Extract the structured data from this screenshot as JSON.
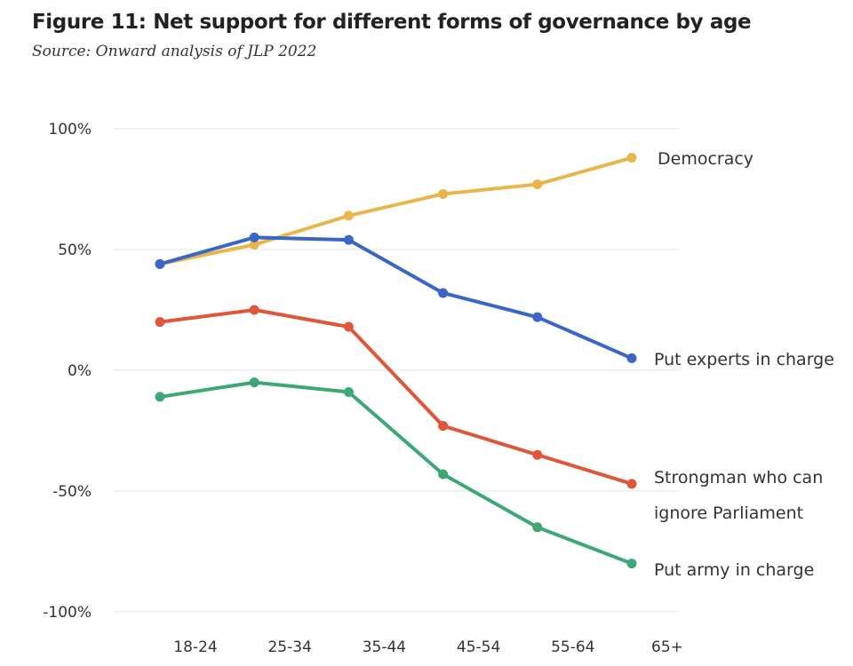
{
  "header": {
    "title": "Figure 11: Net support for different forms of governance by age",
    "subtitle": "Source: Onward analysis of JLP 2022"
  },
  "chart_data": {
    "type": "line",
    "categories": [
      "18-24",
      "25-34",
      "35-44",
      "45-54",
      "55-64",
      "65+"
    ],
    "ylim": [
      -100,
      100
    ],
    "yticks": [
      100,
      50,
      0,
      -50,
      -100
    ],
    "ytick_labels": [
      "100%",
      "50%",
      "0%",
      "-50%",
      "-100%"
    ],
    "grid": true,
    "legend": "direct labels at line ends",
    "series": [
      {
        "name": "Democracy",
        "label_lines": [
          "Democracy"
        ],
        "color": "#E9B64E",
        "values": [
          44,
          52,
          64,
          73,
          77,
          88
        ]
      },
      {
        "name": "Put experts in charge",
        "label_lines": [
          "Put experts in charge"
        ],
        "color": "#3A66C5",
        "values": [
          44,
          55,
          54,
          32,
          22,
          5
        ]
      },
      {
        "name": "Strongman who can ignore Parliament",
        "label_lines": [
          "Strongman who can",
          "ignore Parliament"
        ],
        "color": "#E0563A",
        "values": [
          20,
          25,
          18,
          -23,
          -35,
          -47
        ]
      },
      {
        "name": "Put army in charge",
        "label_lines": [
          "Put army in charge"
        ],
        "color": "#3DA775",
        "values": [
          -11,
          -5,
          -9,
          -43,
          -65,
          -80
        ]
      }
    ]
  }
}
